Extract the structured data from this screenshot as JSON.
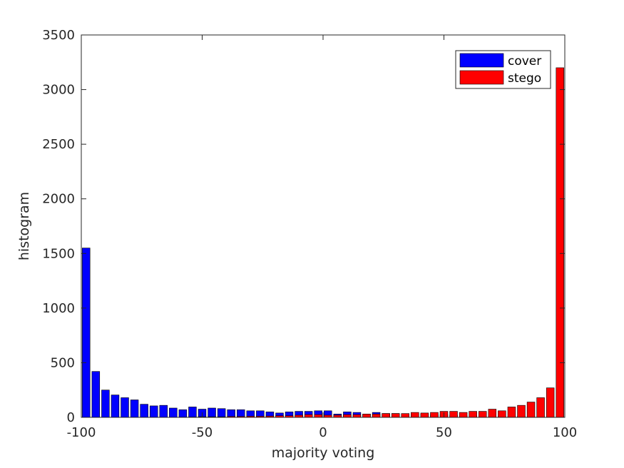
{
  "chart_data": {
    "type": "bar",
    "title": "",
    "xlabel": "majority voting",
    "ylabel": "histogram",
    "xlim": [
      -100,
      100
    ],
    "ylim": [
      0,
      3500
    ],
    "xticks": [
      -100,
      -50,
      0,
      50,
      100
    ],
    "yticks": [
      0,
      500,
      1000,
      1500,
      2000,
      2500,
      3000,
      3500
    ],
    "grid": false,
    "legend_position": "top-right",
    "series": [
      {
        "name": "cover",
        "color": "#0000ff",
        "x": [
          -98,
          -94,
          -90,
          -86,
          -82,
          -78,
          -74,
          -70,
          -66,
          -62,
          -58,
          -54,
          -50,
          -46,
          -42,
          -38,
          -34,
          -30,
          -26,
          -22,
          -18,
          -14,
          -10,
          -6,
          -2,
          2,
          6,
          10,
          14,
          18,
          22,
          26,
          30,
          34,
          38,
          42,
          46,
          50,
          54,
          58,
          62,
          66,
          70,
          74,
          78,
          82,
          86,
          90,
          94,
          98
        ],
        "values": [
          1550,
          420,
          250,
          205,
          180,
          160,
          120,
          105,
          110,
          85,
          70,
          95,
          75,
          85,
          80,
          70,
          70,
          60,
          60,
          50,
          40,
          50,
          55,
          55,
          60,
          60,
          30,
          50,
          45,
          30,
          45,
          35,
          35,
          30,
          30,
          30,
          25,
          25,
          20,
          15,
          15,
          12,
          10,
          10,
          8,
          8,
          5,
          5,
          3,
          2
        ]
      },
      {
        "name": "stego",
        "color": "#ff0000",
        "x": [
          -98,
          -94,
          -90,
          -86,
          -82,
          -78,
          -74,
          -70,
          -66,
          -62,
          -58,
          -54,
          -50,
          -46,
          -42,
          -38,
          -34,
          -30,
          -26,
          -22,
          -18,
          -14,
          -10,
          -6,
          -2,
          2,
          6,
          10,
          14,
          18,
          22,
          26,
          30,
          34,
          38,
          42,
          46,
          50,
          54,
          58,
          62,
          66,
          70,
          74,
          78,
          82,
          86,
          90,
          94,
          98
        ],
        "values": [
          0,
          0,
          0,
          0,
          0,
          0,
          0,
          0,
          0,
          0,
          2,
          3,
          5,
          5,
          5,
          8,
          8,
          10,
          10,
          12,
          15,
          15,
          20,
          25,
          25,
          20,
          20,
          25,
          25,
          30,
          30,
          35,
          35,
          35,
          45,
          40,
          45,
          55,
          55,
          45,
          55,
          55,
          75,
          60,
          95,
          110,
          140,
          180,
          270,
          3200
        ]
      }
    ]
  }
}
